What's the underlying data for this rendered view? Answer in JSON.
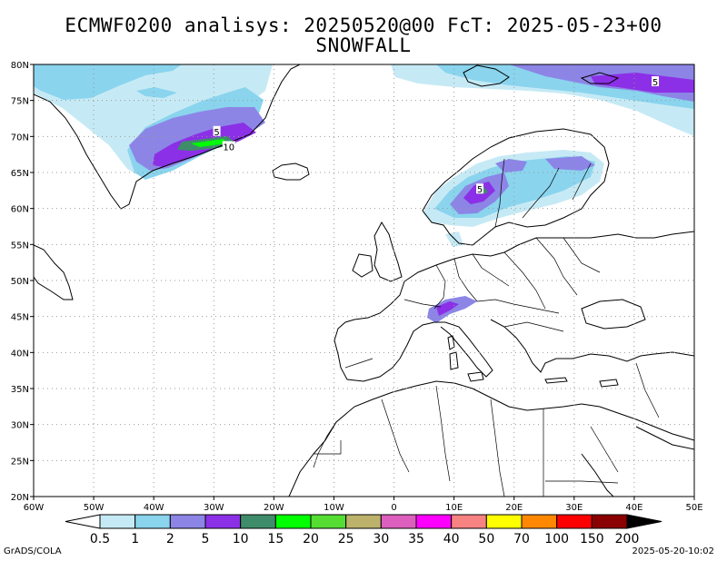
{
  "title": "ECMWF0200 analisys: 20250520@00 FcT: 2025-05-23+00",
  "subtitle": "SNOWFALL",
  "map": {
    "lon_range": [
      -60,
      50
    ],
    "lat_range": [
      20,
      80
    ],
    "lon_ticks": [
      -60,
      -50,
      -40,
      -30,
      -20,
      -10,
      0,
      10,
      20,
      30,
      40,
      50
    ],
    "lon_labels": [
      "60W",
      "50W",
      "40W",
      "30W",
      "20W",
      "10W",
      "0",
      "10E",
      "20E",
      "30E",
      "40E",
      "50E"
    ],
    "lat_ticks": [
      20,
      25,
      30,
      35,
      40,
      45,
      50,
      55,
      60,
      65,
      70,
      75,
      80
    ],
    "lat_labels": [
      "20N",
      "25N",
      "30N",
      "35N",
      "40N",
      "45N",
      "50N",
      "55N",
      "60N",
      "65N",
      "70N",
      "75N",
      "80N"
    ],
    "grid": "dotted"
  },
  "contour_labels": [
    {
      "text": "5",
      "lon": -29.5,
      "lat": 70.7
    },
    {
      "text": "10",
      "lon": -27.5,
      "lat": 68.6
    },
    {
      "text": "5",
      "lon": 43.5,
      "lat": 77.6
    },
    {
      "text": "5",
      "lon": 14.3,
      "lat": 62.7
    }
  ],
  "colorbar": {
    "labels": [
      "0.5",
      "1",
      "2",
      "5",
      "10",
      "15",
      "20",
      "25",
      "30",
      "35",
      "40",
      "50",
      "70",
      "100",
      "150",
      "200"
    ],
    "colors": [
      "#ffffff",
      "#c6eaf5",
      "#8ad4ee",
      "#8c85e6",
      "#8b30e6",
      "#3f8c6a",
      "#00ff00",
      "#55dd33",
      "#bcb26b",
      "#dd5fbd",
      "#ff00ff",
      "#f78282",
      "#ffff00",
      "#ff8800",
      "#ff0000",
      "#8b0000",
      "#000000"
    ]
  },
  "credit_left": "GrADS/COLA",
  "credit_right": "2025-05-20-10:02"
}
